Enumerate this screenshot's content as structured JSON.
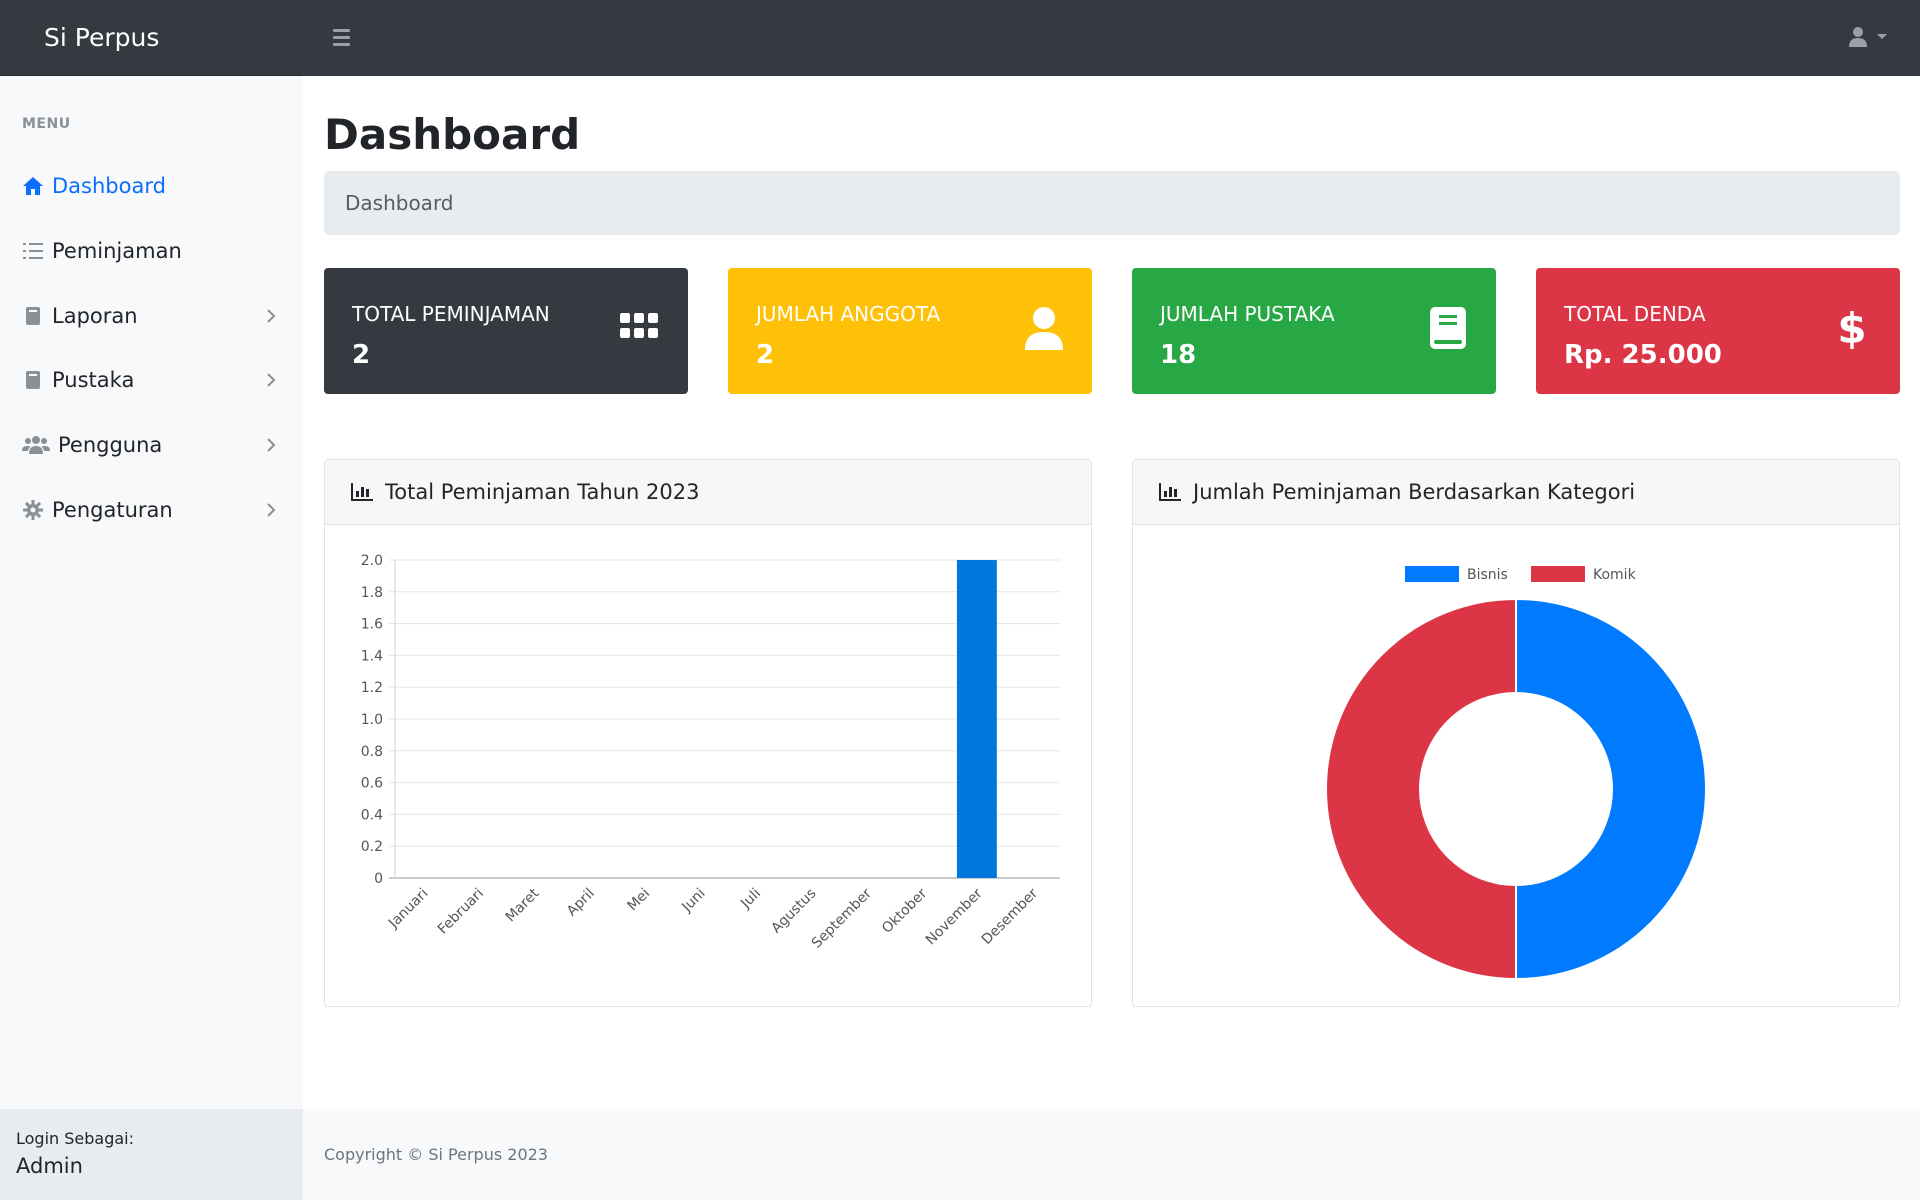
{
  "app": {
    "brand": "Si Perpus"
  },
  "sidebar": {
    "heading": "MENU",
    "items": [
      {
        "label": "Dashboard",
        "icon": "home-icon",
        "active": true
      },
      {
        "label": "Peminjaman",
        "icon": "list-icon"
      },
      {
        "label": "Laporan",
        "icon": "book-icon",
        "chevron": true
      },
      {
        "label": "Pustaka",
        "icon": "book-icon",
        "chevron": true
      },
      {
        "label": "Pengguna",
        "icon": "users-icon",
        "chevron": true
      },
      {
        "label": "Pengaturan",
        "icon": "gear-icon",
        "chevron": true
      }
    ],
    "footer_label": "Login Sebagai:",
    "footer_user": "Admin"
  },
  "page": {
    "title": "Dashboard",
    "breadcrumb": "Dashboard"
  },
  "cards": [
    {
      "label": "TOTAL PEMINJAMAN",
      "value": "2",
      "color": "#343a40",
      "icon": "grid-icon"
    },
    {
      "label": "JUMLAH ANGGOTA",
      "value": "2",
      "color": "#ffc107",
      "icon": "user-icon"
    },
    {
      "label": "JUMLAH PUSTAKA",
      "value": "18",
      "color": "#28a745",
      "icon": "book-icon"
    },
    {
      "label": "TOTAL DENDA",
      "value": "Rp. 25.000",
      "color": "#dc3545",
      "icon": "dollar-icon"
    }
  ],
  "panels": {
    "bar_title": "Total Peminjaman Tahun 2023",
    "pie_title": "Jumlah Peminjaman Berdasarkan Kategori"
  },
  "chart_data": [
    {
      "type": "bar",
      "title": "Total Peminjaman Tahun 2023",
      "categories": [
        "Januari",
        "Februari",
        "Maret",
        "April",
        "Mei",
        "Juni",
        "Juli",
        "Agustus",
        "September",
        "Oktober",
        "November",
        "Desember"
      ],
      "values": [
        0,
        0,
        0,
        0,
        0,
        0,
        0,
        0,
        0,
        0,
        2,
        0
      ],
      "ylim": [
        0,
        2
      ],
      "yticks": [
        "0",
        "0.2",
        "0.4",
        "0.6",
        "0.8",
        "1.0",
        "1.2",
        "1.4",
        "1.6",
        "1.8",
        "2.0"
      ],
      "color": "#0077dd",
      "grid": true
    },
    {
      "type": "pie",
      "title": "Jumlah Peminjaman Berdasarkan Kategori",
      "labels": [
        "Bisnis",
        "Komik"
      ],
      "values": [
        1,
        1
      ],
      "colors": [
        "#007bff",
        "#dc3545"
      ],
      "legend": "top",
      "doughnut": true
    }
  ],
  "footer": {
    "text": "Copyright © Si Perpus 2023"
  }
}
